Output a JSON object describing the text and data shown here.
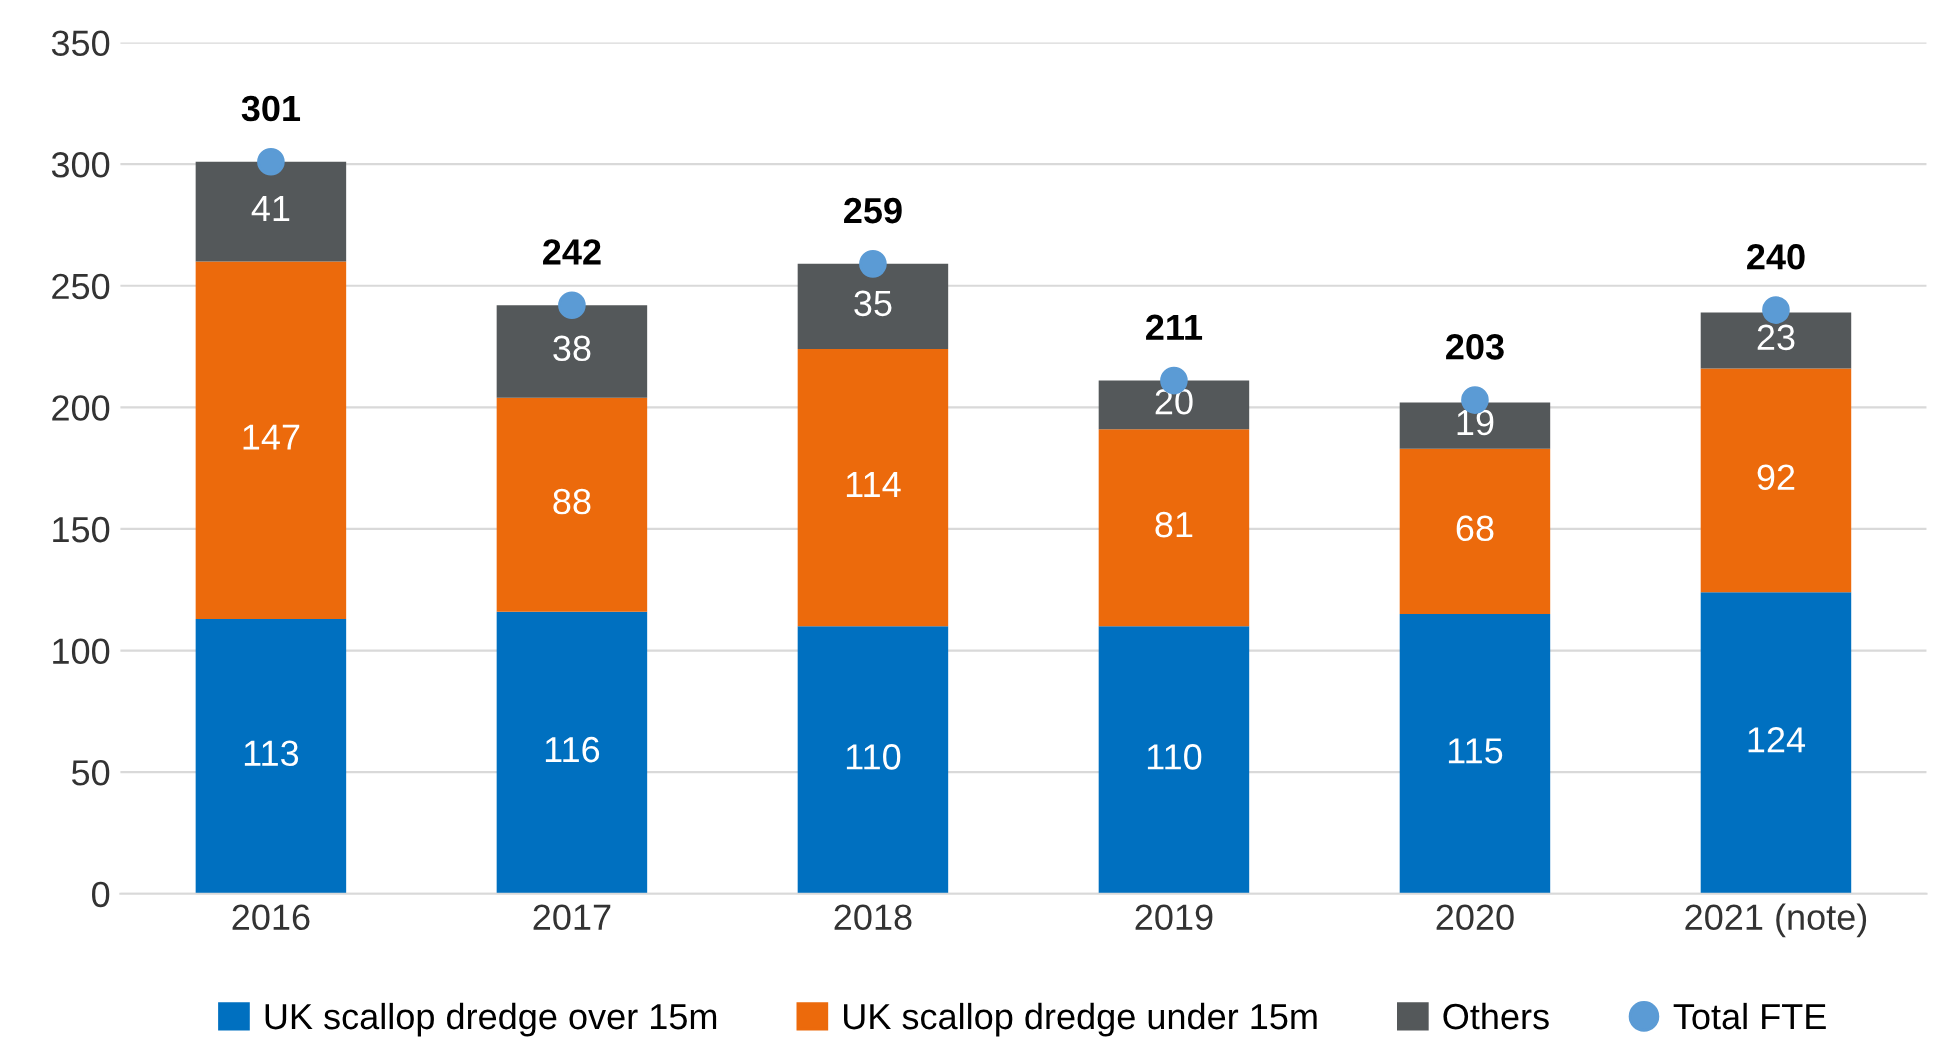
{
  "chart_data": {
    "type": "bar",
    "stacked": true,
    "categories": [
      "2016",
      "2017",
      "2018",
      "2019",
      "2020",
      "2021 (note)"
    ],
    "series": [
      {
        "name": "UK scallop dredge over 15m",
        "color": "#0070c0",
        "values": [
          113,
          116,
          110,
          110,
          115,
          124
        ]
      },
      {
        "name": "UK scallop dredge under 15m",
        "color": "#ec6a0c",
        "values": [
          147,
          88,
          114,
          81,
          68,
          92
        ]
      },
      {
        "name": "Others",
        "color": "#54585a",
        "values": [
          41,
          38,
          35,
          20,
          19,
          23
        ]
      },
      {
        "name": "Total FTE",
        "type": "scatter",
        "color": "#5b9bd5",
        "values": [
          301,
          242,
          259,
          211,
          203,
          240
        ]
      }
    ],
    "ylim": [
      0,
      350
    ],
    "yticks": [
      0,
      50,
      100,
      150,
      200,
      250,
      300,
      350
    ],
    "grid": "y",
    "legend": "bottom",
    "marker": "circle",
    "data_labels": true
  }
}
